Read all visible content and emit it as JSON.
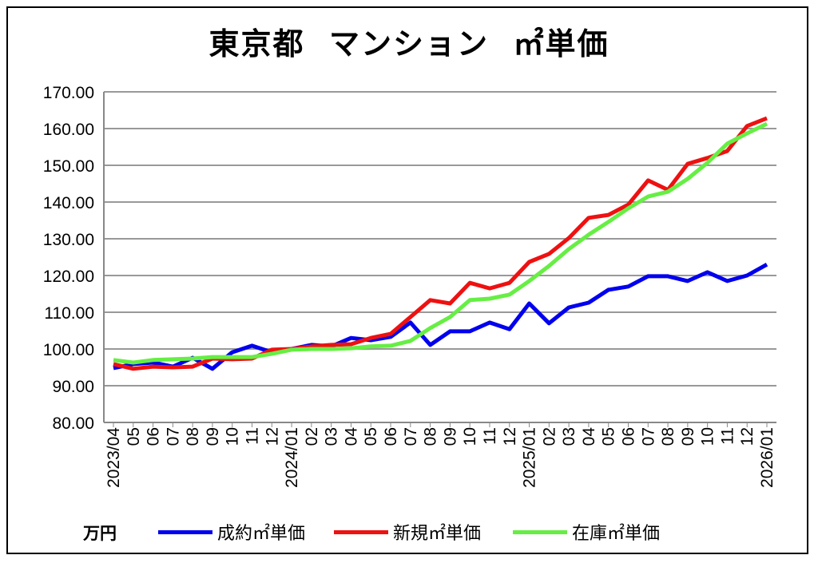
{
  "chart_data": {
    "type": "line",
    "title": "東京都  マンション  ㎡単価",
    "unit_label": "万円",
    "ylim": [
      80,
      170
    ],
    "yticks": [
      "80.00",
      "90.00",
      "100.00",
      "110.00",
      "120.00",
      "130.00",
      "140.00",
      "150.00",
      "160.00",
      "170.00"
    ],
    "grid": true,
    "legend_position": "bottom",
    "categories": [
      "2023/04",
      "05",
      "06",
      "07",
      "08",
      "09",
      "10",
      "11",
      "12",
      "2024/01",
      "02",
      "03",
      "04",
      "05",
      "06",
      "07",
      "08",
      "09",
      "10",
      "11",
      "12",
      "2025/01",
      "02",
      "03",
      "04",
      "05",
      "06",
      "07",
      "08",
      "09",
      "10",
      "11",
      "12",
      "2026/01"
    ],
    "series": [
      {
        "name": "成約㎡単価",
        "color": "#0000ee",
        "values": [
          94.8,
          95.9,
          96.3,
          95.2,
          97.6,
          94.6,
          99.1,
          100.9,
          99.1,
          100.0,
          101.1,
          100.7,
          103.0,
          102.4,
          103.3,
          107.2,
          101.1,
          104.8,
          104.8,
          107.2,
          105.4,
          112.4,
          107.0,
          111.3,
          112.6,
          116.1,
          117.0,
          119.8,
          119.8,
          118.5,
          120.9,
          118.5,
          120.0,
          123.0
        ]
      },
      {
        "name": "新規㎡単価",
        "color": "#ee1111",
        "values": [
          95.9,
          94.6,
          95.2,
          95.0,
          95.2,
          97.4,
          97.2,
          97.4,
          99.8,
          100.0,
          100.7,
          101.1,
          101.3,
          103.0,
          104.1,
          108.7,
          113.3,
          112.4,
          118.0,
          116.5,
          118.0,
          123.7,
          125.9,
          130.2,
          135.7,
          136.5,
          139.3,
          145.9,
          143.3,
          150.4,
          152.0,
          153.9,
          160.7,
          162.8
        ]
      },
      {
        "name": "在庫㎡単価",
        "color": "#66ee44",
        "values": [
          97.0,
          96.3,
          97.0,
          97.2,
          97.4,
          97.8,
          97.8,
          97.8,
          98.7,
          99.8,
          100.0,
          100.0,
          100.2,
          100.7,
          100.9,
          102.2,
          105.7,
          108.7,
          113.3,
          113.7,
          114.8,
          118.5,
          122.6,
          127.2,
          131.1,
          134.6,
          138.3,
          141.5,
          142.8,
          146.3,
          150.7,
          155.9,
          158.7,
          161.3
        ]
      }
    ]
  }
}
